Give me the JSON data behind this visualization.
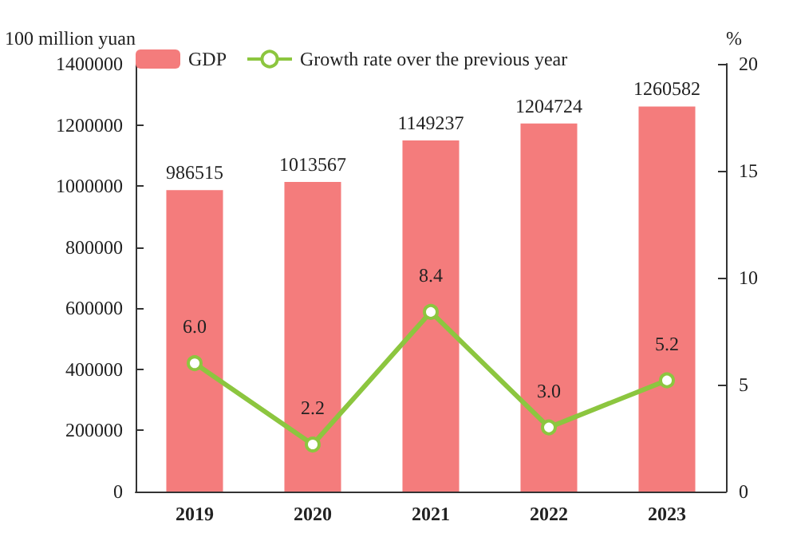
{
  "chart_data": {
    "type": "bar",
    "ylabel": "100 million yuan",
    "y2label": "%",
    "categories": [
      "2019",
      "2020",
      "2021",
      "2022",
      "2023"
    ],
    "series": [
      {
        "name": "GDP",
        "color": "#f47c7c",
        "values": [
          986515,
          1013567,
          1149237,
          1204724,
          1260582
        ]
      },
      {
        "name": "Growth rate over the previous year",
        "type": "line",
        "axis": "y2",
        "color": "#8cc63f",
        "marker": "circle",
        "values": [
          6.0,
          2.2,
          8.4,
          3.0,
          5.2
        ],
        "value_labels": [
          "6.0",
          "2.2",
          "8.4",
          "3.0",
          "5.2"
        ]
      }
    ],
    "ylim": [
      0,
      1400000
    ],
    "yticks": [
      0,
      200000,
      400000,
      600000,
      800000,
      1000000,
      1200000,
      1400000
    ],
    "y2lim": [
      0,
      20
    ],
    "y2ticks": [
      0,
      5,
      10,
      15,
      20
    ],
    "data_labels": true,
    "legend": "top left",
    "grid": false
  }
}
